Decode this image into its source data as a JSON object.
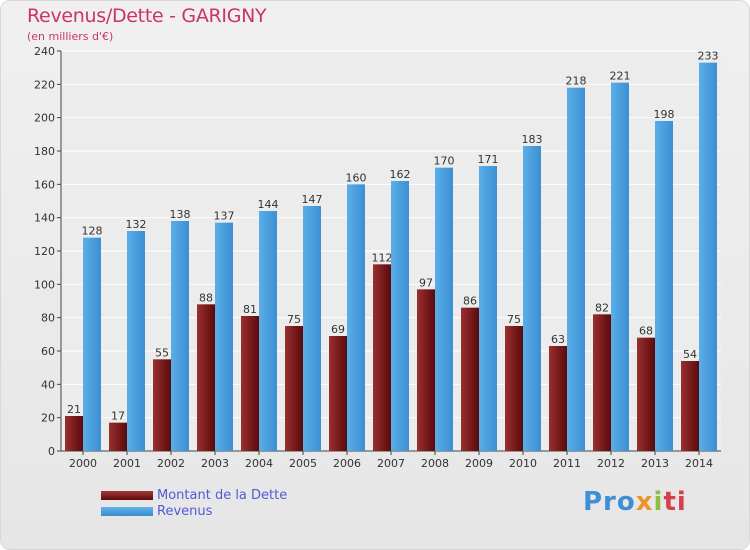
{
  "chart_data": {
    "type": "bar",
    "title": "Revenus/Dette - GARIGNY",
    "subtitle": "(en milliers d'€)",
    "categories": [
      "2000",
      "2001",
      "2002",
      "2003",
      "2004",
      "2005",
      "2006",
      "2007",
      "2008",
      "2009",
      "2010",
      "2011",
      "2012",
      "2013",
      "2014"
    ],
    "series": [
      {
        "name": "Montant de la Dette",
        "color": "#7a1e1e",
        "values": [
          21,
          17,
          55,
          88,
          81,
          75,
          69,
          112,
          97,
          86,
          75,
          63,
          82,
          68,
          54
        ]
      },
      {
        "name": "Revenus",
        "color": "#4ea4e4",
        "values": [
          128,
          132,
          138,
          137,
          144,
          147,
          160,
          162,
          170,
          171,
          183,
          218,
          221,
          198,
          233
        ]
      }
    ],
    "ylim": [
      0,
      240
    ],
    "yticks": [
      0,
      20,
      40,
      60,
      80,
      100,
      120,
      140,
      160,
      180,
      200,
      220,
      240
    ],
    "grid": true,
    "legend_position": "bottom-left"
  },
  "logo": {
    "p1": "Pro",
    "p2": "x",
    "p3": "i",
    "p4": "ti"
  }
}
